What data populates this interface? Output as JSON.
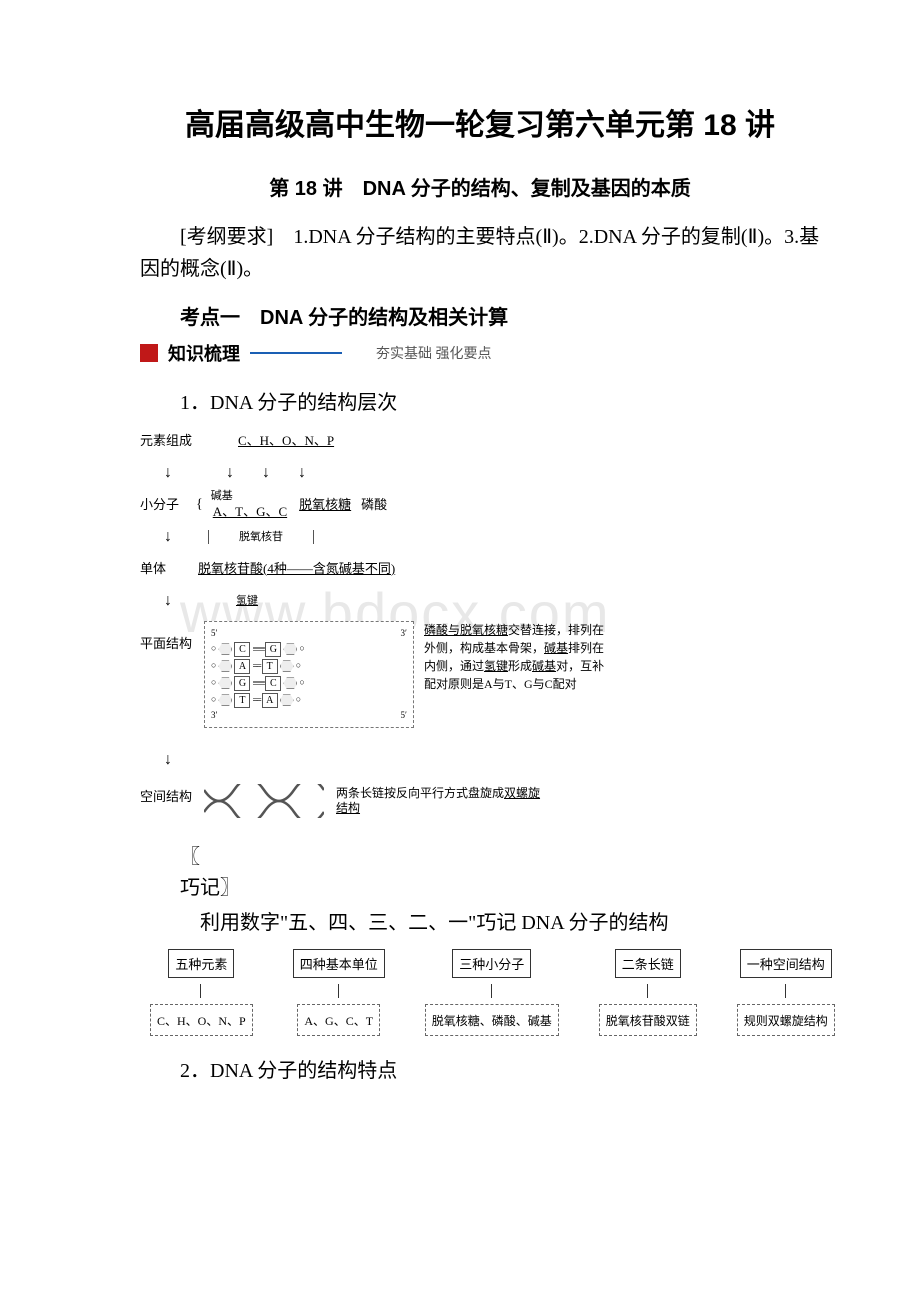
{
  "main_title": "高届高级高中生物一轮复习第六单元第 18 讲",
  "subtitle": "第 18 讲　DNA 分子的结构、复制及基因的本质",
  "exam_req": "[考纲要求]　1.DNA 分子结构的主要特点(Ⅱ)。2.DNA 分子的复制(Ⅱ)。3.基因的概念(Ⅱ)。",
  "section1_heading": "考点一　DNA 分子的结构及相关计算",
  "knowledge_label": "知识梳理",
  "knowledge_right": "夯实基础  强化要点",
  "num1": "1．DNA 分子的结构层次",
  "watermark": "www.bdocx.com",
  "diagram1": {
    "row_element": "元素组成",
    "elements": "C、H、O、N、P",
    "row_small": "小分子",
    "bases_label": "碱基",
    "bases": "A、T、G、C",
    "deoxyribose": "脱氧核糖",
    "phosphate": "磷酸",
    "nucleoside": "脱氧核苷",
    "row_monomer": "单体",
    "monomer": "脱氧核苷酸(4种——含氮碱基不同)",
    "hbond_label": "氢键",
    "row_planar": "平面结构",
    "desc_planar": "磷酸与脱氧核糖交替连接，排列在外侧，构成基本骨架，碱基排列在内侧，通过氢键形成碱基对，互补配对原则是A与T、G与C配对",
    "row_space": "空间结构",
    "desc_space": "两条长链按反向平行方式盘旋成双螺旋结构",
    "bases_scheme": {
      "pairs": [
        {
          "l": "C",
          "r": "G",
          "bonds": "≡≡≡"
        },
        {
          "l": "A",
          "r": "T",
          "bonds": "=="
        },
        {
          "l": "G",
          "r": "C",
          "bonds": "≡≡≡"
        },
        {
          "l": "T",
          "r": "A",
          "bonds": "=="
        }
      ],
      "end_5": "5′",
      "end_3": "3′"
    }
  },
  "bracket_open": "〖",
  "bracket_label": "巧记〗",
  "tip_text": "利用数字\"五、四、三、二、一\"巧记 DNA 分子的结构",
  "diagram2": {
    "cols": [
      {
        "top": "五种元素",
        "bot": "C、H、O、N、P"
      },
      {
        "top": "四种基本单位",
        "bot": "A、G、C、T"
      },
      {
        "top": "三种小分子",
        "bot": "脱氧核糖、磷酸、碱基"
      },
      {
        "top": "二条长链",
        "bot": "脱氧核苷酸双链"
      },
      {
        "top": "一种空间结构",
        "bot": "规则双螺旋结构"
      }
    ]
  },
  "num2": "2．DNA 分子的结构特点"
}
